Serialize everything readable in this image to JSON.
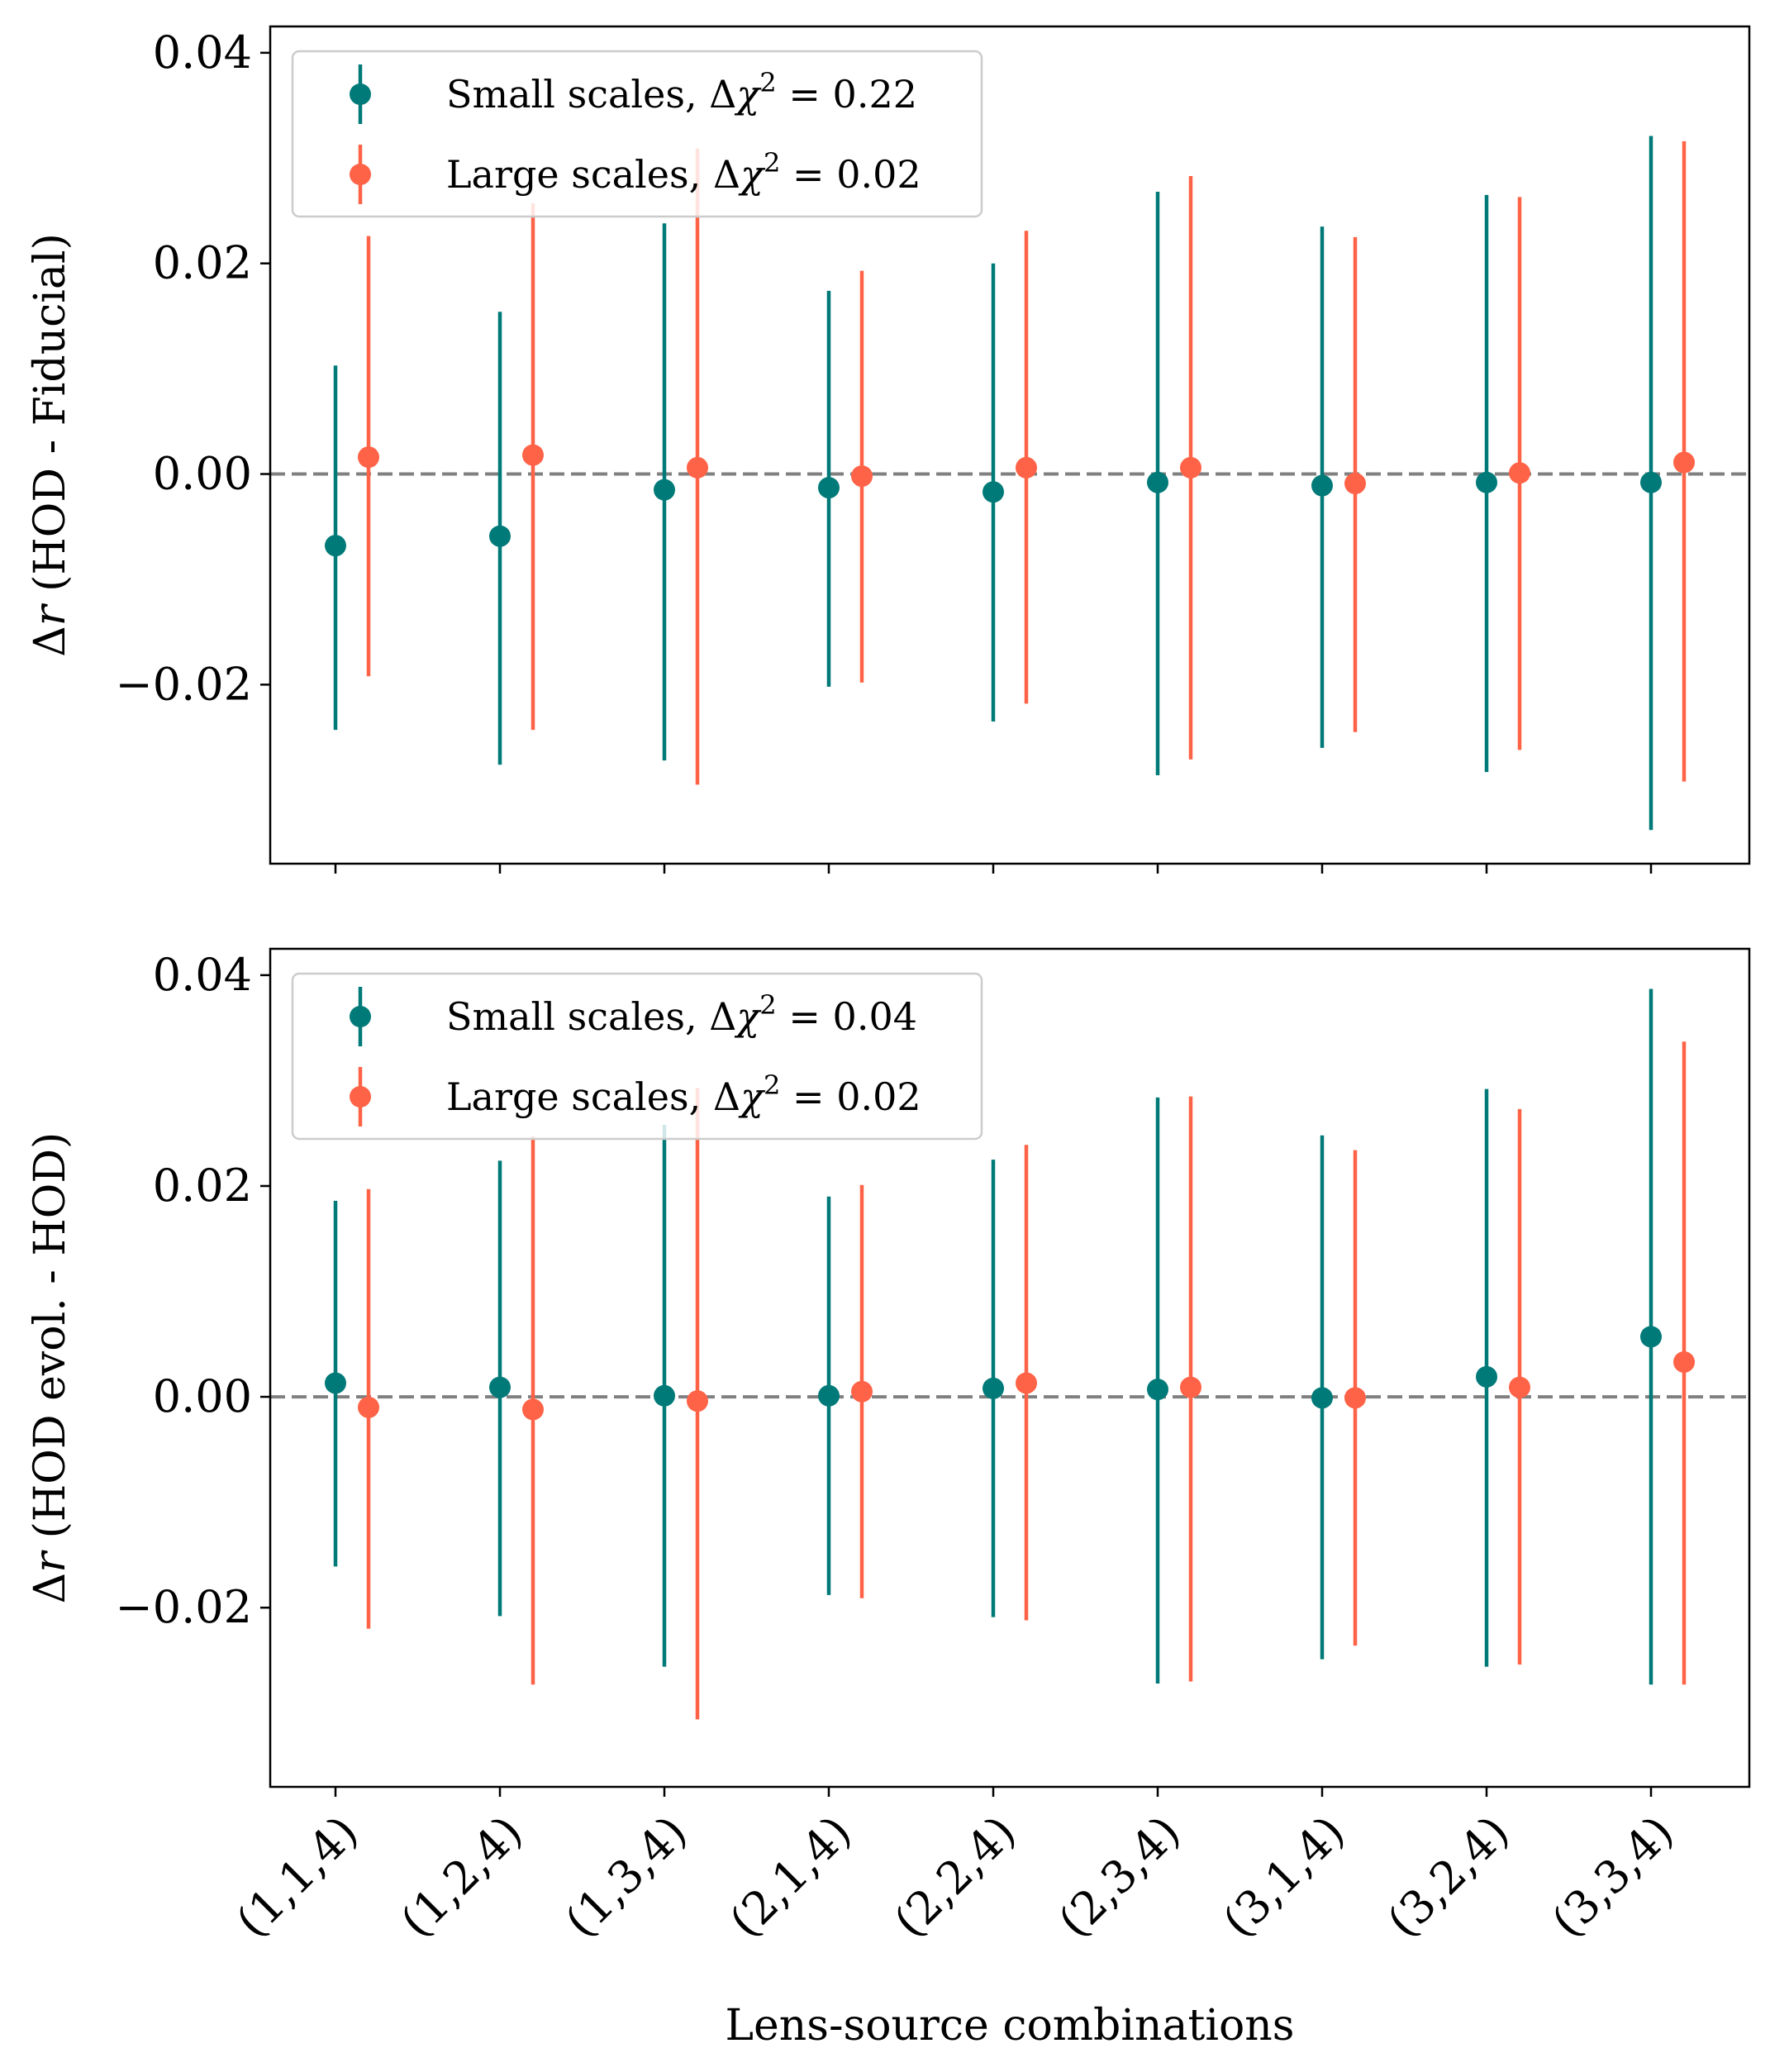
{
  "chart_data": [
    {
      "type": "errorbar",
      "ylabel": "Δr (HOD - Fiducial)",
      "xlabel": "",
      "ylim": [
        -0.037,
        0.0425
      ],
      "yticks": [
        -0.02,
        0.0,
        0.02,
        0.04
      ],
      "ytick_labels": [
        "−0.02",
        "0.00",
        "0.02",
        "0.04"
      ],
      "reference_line": 0.0,
      "categories": [
        "(1,1,4)",
        "(1,2,4)",
        "(1,3,4)",
        "(2,1,4)",
        "(2,2,4)",
        "(2,3,4)",
        "(3,1,4)",
        "(3,2,4)",
        "(3,3,4)"
      ],
      "legend_position": "upper-left",
      "series": [
        {
          "name": "Small scales",
          "legend_label": "Small scales, Δχ² = 0.22",
          "color": "#007a78",
          "values": [
            -0.0068,
            -0.0059,
            -0.0015,
            -0.0013,
            -0.0017,
            -0.0008,
            -0.0011,
            -0.0008,
            -0.0008
          ],
          "lower": [
            -0.0243,
            -0.0276,
            -0.0272,
            -0.0202,
            -0.0235,
            -0.0286,
            -0.026,
            -0.0283,
            -0.0338
          ],
          "upper": [
            0.0103,
            0.0154,
            0.0238,
            0.0174,
            0.02,
            0.0268,
            0.0235,
            0.0265,
            0.0321
          ]
        },
        {
          "name": "Large scales",
          "legend_label": "Large scales, Δχ² = 0.02",
          "color": "#ff6347",
          "values": [
            0.0016,
            0.0018,
            0.0006,
            -0.0002,
            0.0006,
            0.0006,
            -0.0009,
            0.0001,
            0.0011
          ],
          "lower": [
            -0.0192,
            -0.0243,
            -0.0295,
            -0.0198,
            -0.0218,
            -0.0271,
            -0.0245,
            -0.0262,
            -0.0292
          ],
          "upper": [
            0.0226,
            0.0257,
            0.0309,
            0.0193,
            0.0231,
            0.0283,
            0.0225,
            0.0263,
            0.0316
          ]
        }
      ]
    },
    {
      "type": "errorbar",
      "ylabel": "Δr (HOD evol. - HOD)",
      "xlabel": "Lens-source combinations",
      "ylim": [
        -0.037,
        0.0425
      ],
      "yticks": [
        -0.02,
        0.0,
        0.02,
        0.04
      ],
      "ytick_labels": [
        "−0.02",
        "0.00",
        "0.02",
        "0.04"
      ],
      "reference_line": 0.0,
      "categories": [
        "(1,1,4)",
        "(1,2,4)",
        "(1,3,4)",
        "(2,1,4)",
        "(2,2,4)",
        "(2,3,4)",
        "(3,1,4)",
        "(3,2,4)",
        "(3,3,4)"
      ],
      "legend_position": "upper-left",
      "series": [
        {
          "name": "Small scales",
          "legend_label": "Small scales, Δχ² = 0.04",
          "color": "#007a78",
          "values": [
            0.0013,
            0.0009,
            0.0001,
            0.0001,
            0.0008,
            0.0007,
            -0.0001,
            0.0019,
            0.0057
          ],
          "lower": [
            -0.0161,
            -0.0208,
            -0.0256,
            -0.0188,
            -0.0209,
            -0.0272,
            -0.0249,
            -0.0256,
            -0.0273
          ],
          "upper": [
            0.0186,
            0.0224,
            0.0258,
            0.019,
            0.0225,
            0.0284,
            0.0248,
            0.0292,
            0.0387
          ]
        },
        {
          "name": "Large scales",
          "legend_label": "Large scales, Δχ² = 0.02",
          "color": "#ff6347",
          "values": [
            -0.001,
            -0.0012,
            -0.0004,
            0.0005,
            0.0013,
            0.0009,
            -0.0001,
            0.0009,
            0.0033
          ],
          "lower": [
            -0.022,
            -0.0273,
            -0.0306,
            -0.0191,
            -0.0212,
            -0.027,
            -0.0236,
            -0.0254,
            -0.0273
          ],
          "upper": [
            0.0197,
            0.0247,
            0.0293,
            0.0201,
            0.0239,
            0.0285,
            0.0234,
            0.0273,
            0.0337
          ]
        }
      ]
    }
  ]
}
